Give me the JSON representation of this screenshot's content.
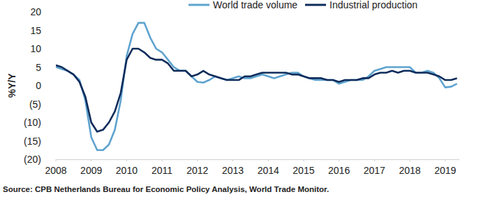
{
  "chart_data": {
    "type": "line",
    "y_label": "%Y/Y",
    "source": "Source: CPB Netherlands Bureau for Economic Policy Analysis, World Trade Monitor.",
    "legend": "top",
    "grid": false,
    "xlim": [
      2008,
      2019.4
    ],
    "xticks": [
      2008,
      2009,
      2010,
      2011,
      2012,
      2013,
      2014,
      2015,
      2016,
      2017,
      2018,
      2019
    ],
    "ylim": [
      -20,
      20
    ],
    "yticks": [
      {
        "value": -20,
        "label": "(20)"
      },
      {
        "value": -15,
        "label": "(15)"
      },
      {
        "value": -10,
        "label": "(10)"
      },
      {
        "value": -5,
        "label": "(5)"
      },
      0,
      5,
      10,
      15,
      20
    ],
    "x": [
      2008,
      2008.167,
      2008.333,
      2008.5,
      2008.667,
      2008.833,
      2009,
      2009.167,
      2009.333,
      2009.5,
      2009.667,
      2009.833,
      2010,
      2010.167,
      2010.333,
      2010.5,
      2010.667,
      2010.833,
      2011,
      2011.167,
      2011.333,
      2011.5,
      2011.667,
      2011.833,
      2012,
      2012.167,
      2012.333,
      2012.5,
      2012.667,
      2012.833,
      2013,
      2013.167,
      2013.333,
      2013.5,
      2013.667,
      2013.833,
      2014,
      2014.167,
      2014.333,
      2014.5,
      2014.667,
      2014.833,
      2015,
      2015.167,
      2015.333,
      2015.5,
      2015.667,
      2015.833,
      2016,
      2016.167,
      2016.333,
      2016.5,
      2016.667,
      2016.833,
      2017,
      2017.167,
      2017.333,
      2017.5,
      2017.667,
      2017.833,
      2018,
      2018.167,
      2018.333,
      2018.5,
      2018.667,
      2018.833,
      2019,
      2019.167,
      2019.333
    ],
    "series": [
      {
        "name": "World trade volume",
        "color": "#5ea3cf",
        "line_style": "solid",
        "values": [
          5,
          4.5,
          4,
          3,
          1.5,
          -4,
          -14,
          -17.5,
          -17.5,
          -16,
          -12,
          -4,
          8,
          14,
          17,
          17,
          13,
          10,
          9,
          7,
          5,
          4,
          4,
          2.5,
          1,
          0.8,
          1.5,
          2.5,
          2,
          1.5,
          2,
          2.5,
          2,
          2,
          2.5,
          3,
          2.5,
          2,
          2.5,
          3,
          3.5,
          3.5,
          2.5,
          2,
          1.5,
          1.5,
          1.5,
          1.5,
          0.5,
          1,
          1.5,
          1.5,
          1.5,
          2.5,
          4,
          4.5,
          5,
          5,
          5,
          5,
          5,
          3.5,
          3.5,
          4,
          3.5,
          2,
          -0.5,
          -0.3,
          0.5
        ]
      },
      {
        "name": "Industrial production",
        "color": "#0d2b5a",
        "line_style": "solid",
        "values": [
          5.5,
          5,
          4,
          3,
          1,
          -3,
          -10,
          -12.5,
          -12,
          -10,
          -7,
          -2,
          7,
          10,
          10,
          9,
          7.5,
          7,
          7,
          6,
          4,
          4,
          4,
          2.5,
          3,
          4,
          3,
          2.5,
          2,
          1.5,
          1.5,
          1.5,
          2.5,
          2.5,
          3,
          3.5,
          3.5,
          3.5,
          3.5,
          3.5,
          3,
          3,
          2.5,
          2,
          2,
          2,
          1.5,
          1.5,
          1,
          1.5,
          1.5,
          1.5,
          2,
          2,
          3,
          3.5,
          3.5,
          4,
          3.5,
          4,
          4,
          3.5,
          3.5,
          3.5,
          3,
          2.5,
          1.5,
          1.5,
          2
        ]
      }
    ]
  }
}
